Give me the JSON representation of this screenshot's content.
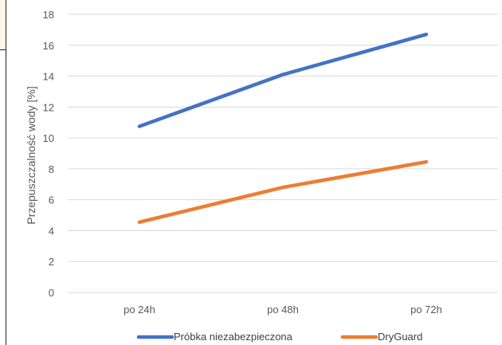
{
  "chart_data": {
    "type": "line",
    "categories": [
      "po 24h",
      "po 48h",
      "po 72h"
    ],
    "series": [
      {
        "name": "Próbka niezabezpieczona",
        "values": [
          10.75,
          14.1,
          16.7
        ],
        "color": "#4472c4"
      },
      {
        "name": "DryGuard",
        "values": [
          4.55,
          6.8,
          8.45
        ],
        "color": "#ed7d31"
      }
    ],
    "ylabel": "Przepuszczalność wody [%]",
    "yticks": [
      0,
      2,
      4,
      6,
      8,
      10,
      12,
      14,
      16,
      18
    ],
    "ylim": [
      0,
      18
    ],
    "grid": true,
    "legend": "bottom"
  }
}
